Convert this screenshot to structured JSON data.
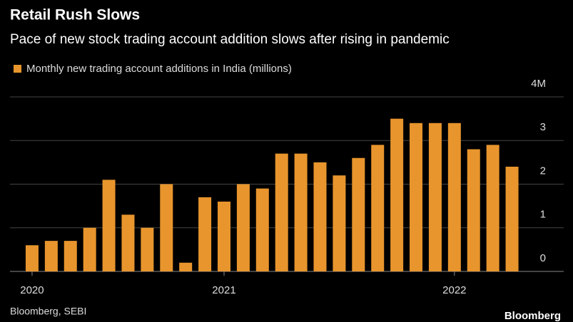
{
  "chart_data": {
    "type": "bar",
    "title": "Retail Rush Slows",
    "subtitle": "Pace of new stock trading account addition slows after rising in pandemic",
    "source": "Bloomberg, SEBI",
    "brand": "Bloomberg",
    "series": [
      {
        "name": "Monthly new trading account additions in India (millions)",
        "color": "#e8952d",
        "values": [
          0.6,
          0.7,
          0.7,
          1.0,
          2.1,
          1.3,
          1.0,
          2.0,
          0.2,
          1.7,
          1.6,
          2.0,
          1.9,
          2.7,
          2.7,
          2.5,
          2.2,
          2.6,
          2.9,
          3.5,
          3.4,
          3.4,
          3.4,
          2.8,
          2.9,
          2.4
        ]
      }
    ],
    "categories": [
      "2020",
      null,
      null,
      null,
      null,
      null,
      null,
      null,
      null,
      null,
      "2021",
      null,
      null,
      null,
      null,
      null,
      null,
      null,
      null,
      null,
      null,
      null,
      "2022",
      null,
      null,
      null
    ],
    "ylim": [
      0,
      4
    ],
    "yticks": [
      0,
      1,
      2,
      3,
      {
        "value": 4,
        "label": "4M"
      }
    ],
    "grid": true
  }
}
